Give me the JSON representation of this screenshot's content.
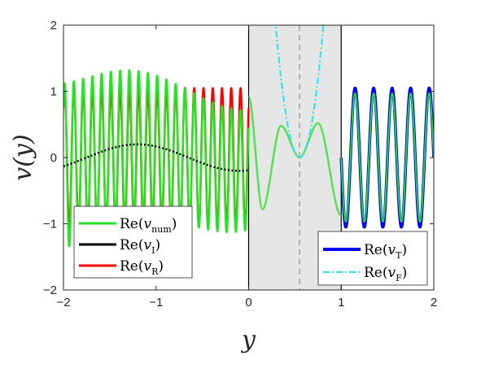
{
  "chart_data": {
    "type": "line",
    "xlabel": "y",
    "ylabel": "v(y)",
    "xlim": [
      -2,
      2
    ],
    "ylim": [
      -2,
      2
    ],
    "xticks": [
      "−2",
      "−1",
      "0",
      "1",
      "2"
    ],
    "yticks": [
      "−2",
      "−1",
      "0",
      "1",
      "2"
    ],
    "grid": false,
    "shaded_region": {
      "x": [
        0,
        1
      ],
      "color": "#e6e6e6"
    },
    "vertical_lines": [
      {
        "x": 0,
        "style": "solid",
        "color": "#000000"
      },
      {
        "x": 1,
        "style": "solid",
        "color": "#000000"
      },
      {
        "x": 0.55,
        "style": "dashed",
        "color": "#808080"
      }
    ],
    "series": [
      {
        "name": "Re(v_num)",
        "color": "#22e622",
        "style": "solid",
        "x_range": [
          -2,
          2
        ],
        "y_range_approx": [
          -1.3,
          1.3
        ],
        "pieces": [
          {
            "x_range": [
              -2,
              0
            ],
            "description": "fast oscillation, amplitude ~1.25 near y=-2 decreasing to ~0.9 near y=0, oscillating about Re(v_I)"
          },
          {
            "x_range": [
              0,
              1
            ],
            "sample_points": [
              [
                0,
                0.92
              ],
              [
                0.15,
                -0.78
              ],
              [
                0.35,
                0.48
              ],
              [
                0.55,
                0.0
              ],
              [
                0.75,
                0.52
              ],
              [
                1.0,
                -0.88
              ]
            ]
          },
          {
            "x_range": [
              1,
              2
            ],
            "amplitude": 1.0,
            "wavelength": 0.2
          }
        ]
      },
      {
        "name": "Re(v_I)",
        "color": "#000000",
        "style": "dotted",
        "x_range": [
          -2,
          0
        ],
        "amplitude": 0.2,
        "wavelength": 2.2,
        "sample_points": [
          [
            -2,
            0.15
          ],
          [
            -1.8,
            0.2
          ],
          [
            -1.2,
            0.0
          ],
          [
            -0.6,
            -0.2
          ],
          [
            0,
            0.05
          ]
        ]
      },
      {
        "name": "Re(v_R)",
        "color": "#ff0000",
        "style": "solid",
        "x_range": [
          -2,
          0
        ],
        "amplitude": 1.05,
        "wavelength": 0.1
      },
      {
        "name": "Re(v_T)",
        "color": "#0000ff",
        "style": "solid",
        "x_range": [
          1,
          2
        ],
        "amplitude": 1.05,
        "wavelength": 0.2
      },
      {
        "name": "Re(v_F)",
        "color": "#33e6e6",
        "style": "dash-dot",
        "x_range": [
          0.2,
          0.9
        ],
        "description": "parabola with minimum 0 at y=0.55, exceeding 2 near y=0.25 and y=0.85"
      }
    ],
    "legends": [
      {
        "placement": "bottom-left",
        "entries": [
          {
            "text": "Re(",
            "var": "v",
            "sub": "num",
            "close": ")",
            "color": "#22e622"
          },
          {
            "text": "Re(",
            "var": "v",
            "sub": "I",
            "close": ")",
            "color": "#000000"
          },
          {
            "text": "Re(",
            "var": "v",
            "sub": "R",
            "close": ")",
            "color": "#ff0000"
          }
        ]
      },
      {
        "placement": "bottom-right",
        "entries": [
          {
            "text": "Re(",
            "var": "v",
            "sub": "T",
            "close": ")",
            "color": "#0000ff"
          },
          {
            "text": "Re(",
            "var": "v",
            "sub": "F",
            "close": ")",
            "color": "#33e6e6"
          }
        ]
      }
    ]
  }
}
